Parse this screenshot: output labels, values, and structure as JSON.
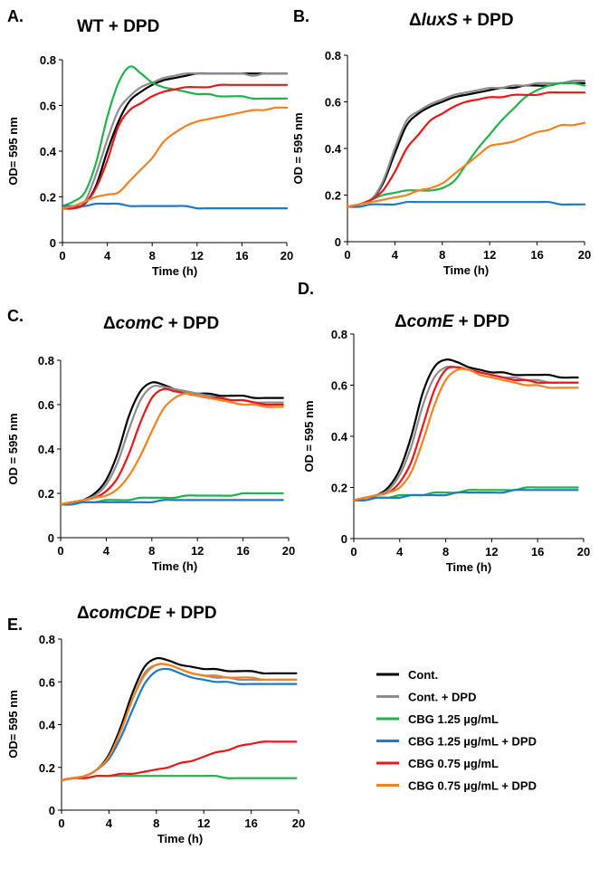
{
  "legend": [
    {
      "key": "cont",
      "label": "Cont.",
      "color": "#000000"
    },
    {
      "key": "cont_dpd",
      "label": "Cont. + DPD",
      "color": "#8c8c8c"
    },
    {
      "key": "cbg125",
      "label": "CBG 1.25 µg/mL",
      "color": "#22b14c"
    },
    {
      "key": "cbg125_dpd",
      "label": "CBG 1.25 µg/mL + DPD",
      "color": "#1f78c8"
    },
    {
      "key": "cbg075",
      "label": "CBG 0.75 µg/mL",
      "color": "#e8171b"
    },
    {
      "key": "cbg075_dpd",
      "label": "CBG 0.75 µg/mL + DPD",
      "color": "#f5821f"
    }
  ],
  "chart_data": [
    {
      "panel": "A.",
      "type": "line",
      "title": {
        "prefix": "",
        "italic": "",
        "suffix": "WT + DPD"
      },
      "xlabel": "Time (h)",
      "ylabel": "OD= 595 nm",
      "xlim": [
        0,
        20
      ],
      "ylim": [
        0,
        0.8
      ],
      "xticks": [
        "0",
        "4",
        "8",
        "12",
        "16",
        "20"
      ],
      "yticks": [
        "0",
        "0.2",
        "0.4",
        "0.6",
        "0.8"
      ],
      "x": [
        0,
        1,
        2,
        3,
        4,
        5,
        6,
        7,
        8,
        9,
        10,
        11,
        12,
        13,
        14,
        15,
        16,
        17,
        18,
        19,
        20
      ],
      "series": [
        {
          "key": "cont",
          "values": [
            0.15,
            0.15,
            0.17,
            0.25,
            0.4,
            0.53,
            0.62,
            0.66,
            0.69,
            0.71,
            0.72,
            0.73,
            0.74,
            0.74,
            0.74,
            0.74,
            0.74,
            0.74,
            0.74,
            0.74,
            0.74
          ]
        },
        {
          "key": "cont_dpd",
          "values": [
            0.15,
            0.15,
            0.18,
            0.3,
            0.45,
            0.58,
            0.64,
            0.68,
            0.7,
            0.72,
            0.73,
            0.74,
            0.74,
            0.74,
            0.74,
            0.74,
            0.74,
            0.73,
            0.74,
            0.74,
            0.74
          ]
        },
        {
          "key": "cbg125",
          "values": [
            0.16,
            0.18,
            0.22,
            0.35,
            0.55,
            0.7,
            0.77,
            0.74,
            0.7,
            0.68,
            0.67,
            0.66,
            0.65,
            0.65,
            0.64,
            0.64,
            0.64,
            0.63,
            0.63,
            0.63,
            0.63
          ]
        },
        {
          "key": "cbg125_dpd",
          "values": [
            0.16,
            0.16,
            0.16,
            0.17,
            0.17,
            0.17,
            0.16,
            0.16,
            0.16,
            0.16,
            0.16,
            0.16,
            0.15,
            0.15,
            0.15,
            0.15,
            0.15,
            0.15,
            0.15,
            0.15,
            0.15
          ]
        },
        {
          "key": "cbg075",
          "values": [
            0.15,
            0.15,
            0.17,
            0.24,
            0.36,
            0.51,
            0.58,
            0.61,
            0.64,
            0.66,
            0.67,
            0.68,
            0.68,
            0.68,
            0.69,
            0.69,
            0.69,
            0.69,
            0.69,
            0.69,
            0.69
          ]
        },
        {
          "key": "cbg075_dpd",
          "values": [
            0.15,
            0.16,
            0.18,
            0.2,
            0.21,
            0.22,
            0.27,
            0.32,
            0.37,
            0.44,
            0.48,
            0.51,
            0.53,
            0.54,
            0.55,
            0.56,
            0.57,
            0.58,
            0.58,
            0.59,
            0.59
          ]
        }
      ]
    },
    {
      "panel": "B.",
      "type": "line",
      "title": {
        "prefix": "Δ",
        "italic": "luxS",
        "suffix": " + DPD"
      },
      "xlabel": "Time (h)",
      "ylabel": "OD = 595 nm",
      "xlim": [
        0,
        20
      ],
      "ylim": [
        0,
        0.8
      ],
      "xticks": [
        "0",
        "4",
        "8",
        "12",
        "16",
        "20"
      ],
      "yticks": [
        "0",
        "0.2",
        "0.4",
        "0.6",
        "0.8"
      ],
      "x": [
        0,
        1,
        2,
        3,
        4,
        5,
        6,
        7,
        8,
        9,
        10,
        11,
        12,
        13,
        14,
        15,
        16,
        17,
        18,
        19,
        20
      ],
      "series": [
        {
          "key": "cont",
          "values": [
            0.15,
            0.16,
            0.18,
            0.25,
            0.38,
            0.5,
            0.55,
            0.58,
            0.6,
            0.62,
            0.63,
            0.64,
            0.65,
            0.66,
            0.66,
            0.67,
            0.67,
            0.67,
            0.68,
            0.68,
            0.68
          ]
        },
        {
          "key": "cont_dpd",
          "values": [
            0.15,
            0.16,
            0.18,
            0.26,
            0.4,
            0.52,
            0.56,
            0.59,
            0.61,
            0.63,
            0.64,
            0.65,
            0.66,
            0.66,
            0.67,
            0.67,
            0.68,
            0.68,
            0.68,
            0.69,
            0.69
          ]
        },
        {
          "key": "cbg125",
          "values": [
            0.15,
            0.16,
            0.18,
            0.2,
            0.21,
            0.22,
            0.22,
            0.22,
            0.23,
            0.26,
            0.33,
            0.4,
            0.46,
            0.52,
            0.57,
            0.62,
            0.65,
            0.67,
            0.68,
            0.68,
            0.67
          ]
        },
        {
          "key": "cbg125_dpd",
          "values": [
            0.15,
            0.15,
            0.16,
            0.16,
            0.16,
            0.17,
            0.17,
            0.17,
            0.17,
            0.17,
            0.17,
            0.17,
            0.17,
            0.17,
            0.17,
            0.17,
            0.17,
            0.17,
            0.16,
            0.16,
            0.16
          ]
        },
        {
          "key": "cbg075",
          "values": [
            0.15,
            0.16,
            0.18,
            0.22,
            0.3,
            0.4,
            0.46,
            0.52,
            0.55,
            0.58,
            0.6,
            0.61,
            0.62,
            0.62,
            0.63,
            0.63,
            0.63,
            0.64,
            0.64,
            0.64,
            0.64
          ]
        },
        {
          "key": "cbg075_dpd",
          "values": [
            0.15,
            0.16,
            0.17,
            0.18,
            0.19,
            0.2,
            0.22,
            0.23,
            0.25,
            0.29,
            0.33,
            0.37,
            0.41,
            0.42,
            0.43,
            0.45,
            0.47,
            0.48,
            0.5,
            0.5,
            0.51
          ]
        }
      ]
    },
    {
      "panel": "C.",
      "type": "line",
      "title": {
        "prefix": "Δ",
        "italic": "comC",
        "suffix": " + DPD"
      },
      "xlabel": "Time (h)",
      "ylabel": "OD = 595 nm",
      "xlim": [
        0,
        20
      ],
      "ylim": [
        0,
        0.8
      ],
      "xticks": [
        "0",
        "4",
        "8",
        "12",
        "16",
        "20"
      ],
      "yticks": [
        "0",
        "0.2",
        "0.4",
        "0.6",
        "0.8"
      ],
      "x": [
        0,
        1,
        2,
        3,
        4,
        5,
        6,
        7,
        8,
        9,
        10,
        11,
        12,
        13,
        14,
        15,
        16,
        17,
        18,
        19,
        19.5
      ],
      "series": [
        {
          "key": "cont",
          "values": [
            0.15,
            0.16,
            0.17,
            0.2,
            0.26,
            0.38,
            0.55,
            0.66,
            0.7,
            0.69,
            0.67,
            0.66,
            0.65,
            0.65,
            0.64,
            0.64,
            0.64,
            0.63,
            0.63,
            0.63,
            0.63
          ]
        },
        {
          "key": "cont_dpd",
          "values": [
            0.15,
            0.16,
            0.17,
            0.19,
            0.24,
            0.34,
            0.49,
            0.62,
            0.68,
            0.68,
            0.67,
            0.66,
            0.65,
            0.64,
            0.63,
            0.62,
            0.62,
            0.61,
            0.61,
            0.61,
            0.61
          ]
        },
        {
          "key": "cbg125",
          "values": [
            0.15,
            0.16,
            0.16,
            0.16,
            0.17,
            0.17,
            0.17,
            0.18,
            0.18,
            0.18,
            0.18,
            0.19,
            0.19,
            0.19,
            0.19,
            0.19,
            0.2,
            0.2,
            0.2,
            0.2,
            0.2
          ]
        },
        {
          "key": "cbg125_dpd",
          "values": [
            0.15,
            0.15,
            0.16,
            0.16,
            0.16,
            0.16,
            0.16,
            0.16,
            0.16,
            0.17,
            0.17,
            0.17,
            0.17,
            0.17,
            0.17,
            0.17,
            0.17,
            0.17,
            0.17,
            0.17,
            0.17
          ]
        },
        {
          "key": "cbg075",
          "values": [
            0.15,
            0.16,
            0.17,
            0.18,
            0.21,
            0.27,
            0.38,
            0.52,
            0.63,
            0.67,
            0.66,
            0.65,
            0.64,
            0.63,
            0.63,
            0.62,
            0.62,
            0.61,
            0.6,
            0.6,
            0.6
          ]
        },
        {
          "key": "cbg075_dpd",
          "values": [
            0.15,
            0.16,
            0.17,
            0.18,
            0.19,
            0.22,
            0.28,
            0.37,
            0.48,
            0.58,
            0.63,
            0.65,
            0.64,
            0.63,
            0.62,
            0.61,
            0.6,
            0.6,
            0.59,
            0.59,
            0.59
          ]
        }
      ]
    },
    {
      "panel": "D.",
      "type": "line",
      "title": {
        "prefix": "Δ",
        "italic": "comE",
        "suffix": " + DPD"
      },
      "xlabel": "Time (h)",
      "ylabel": "OD = 595 nm",
      "xlim": [
        0,
        20
      ],
      "ylim": [
        0,
        0.8
      ],
      "xticks": [
        "0",
        "4",
        "8",
        "12",
        "16",
        "20"
      ],
      "yticks": [
        "0",
        "0.2",
        "0.4",
        "0.6",
        "0.8"
      ],
      "x": [
        0,
        1,
        2,
        3,
        4,
        5,
        6,
        7,
        8,
        9,
        10,
        11,
        12,
        13,
        14,
        15,
        16,
        17,
        18,
        19,
        19.5
      ],
      "series": [
        {
          "key": "cont",
          "values": [
            0.15,
            0.16,
            0.17,
            0.2,
            0.27,
            0.4,
            0.57,
            0.67,
            0.7,
            0.69,
            0.67,
            0.66,
            0.65,
            0.65,
            0.64,
            0.64,
            0.64,
            0.64,
            0.63,
            0.63,
            0.63
          ]
        },
        {
          "key": "cont_dpd",
          "values": [
            0.15,
            0.16,
            0.17,
            0.19,
            0.25,
            0.36,
            0.52,
            0.63,
            0.67,
            0.67,
            0.66,
            0.65,
            0.64,
            0.63,
            0.63,
            0.62,
            0.62,
            0.61,
            0.61,
            0.61,
            0.61
          ]
        },
        {
          "key": "cbg125",
          "values": [
            0.15,
            0.15,
            0.16,
            0.16,
            0.17,
            0.17,
            0.17,
            0.18,
            0.18,
            0.18,
            0.19,
            0.19,
            0.19,
            0.19,
            0.19,
            0.2,
            0.2,
            0.2,
            0.2,
            0.2,
            0.2
          ]
        },
        {
          "key": "cbg125_dpd",
          "values": [
            0.15,
            0.15,
            0.16,
            0.16,
            0.16,
            0.17,
            0.17,
            0.17,
            0.17,
            0.18,
            0.18,
            0.18,
            0.18,
            0.18,
            0.19,
            0.19,
            0.19,
            0.19,
            0.19,
            0.19,
            0.19
          ]
        },
        {
          "key": "cbg075",
          "values": [
            0.15,
            0.16,
            0.17,
            0.18,
            0.22,
            0.3,
            0.44,
            0.58,
            0.66,
            0.67,
            0.66,
            0.65,
            0.64,
            0.63,
            0.62,
            0.62,
            0.61,
            0.61,
            0.61,
            0.61,
            0.61
          ]
        },
        {
          "key": "cbg075_dpd",
          "values": [
            0.15,
            0.16,
            0.17,
            0.18,
            0.2,
            0.26,
            0.38,
            0.52,
            0.62,
            0.66,
            0.66,
            0.64,
            0.63,
            0.62,
            0.61,
            0.6,
            0.6,
            0.59,
            0.59,
            0.59,
            0.59
          ]
        }
      ]
    },
    {
      "panel": "E.",
      "type": "line",
      "title": {
        "prefix": "Δ",
        "italic": "comCDE",
        "suffix": " + DPD"
      },
      "xlabel": "Time (h)",
      "ylabel": "OD= 595 nm",
      "xlim": [
        0,
        20
      ],
      "ylim": [
        0,
        0.8
      ],
      "xticks": [
        "0",
        "4",
        "8",
        "12",
        "16",
        "20"
      ],
      "yticks": [
        "0",
        "0.2",
        "0.4",
        "0.6",
        "0.8"
      ],
      "x": [
        0,
        1,
        2,
        3,
        4,
        5,
        6,
        7,
        8,
        9,
        10,
        11,
        12,
        13,
        14,
        15,
        16,
        17,
        18,
        19,
        19.8
      ],
      "series": [
        {
          "key": "cont",
          "values": [
            0.14,
            0.15,
            0.16,
            0.19,
            0.26,
            0.39,
            0.55,
            0.67,
            0.71,
            0.7,
            0.68,
            0.67,
            0.66,
            0.66,
            0.65,
            0.65,
            0.65,
            0.64,
            0.64,
            0.64,
            0.64
          ]
        },
        {
          "key": "cont_dpd",
          "values": [
            0.14,
            0.15,
            0.16,
            0.19,
            0.25,
            0.37,
            0.52,
            0.64,
            0.68,
            0.68,
            0.66,
            0.64,
            0.63,
            0.62,
            0.62,
            0.61,
            0.61,
            0.61,
            0.61,
            0.61,
            0.61
          ]
        },
        {
          "key": "cbg125",
          "values": [
            0.14,
            0.15,
            0.15,
            0.16,
            0.16,
            0.16,
            0.16,
            0.16,
            0.16,
            0.16,
            0.16,
            0.16,
            0.16,
            0.16,
            0.15,
            0.15,
            0.15,
            0.15,
            0.15,
            0.15,
            0.15
          ]
        },
        {
          "key": "cbg125_dpd",
          "values": [
            0.14,
            0.15,
            0.16,
            0.19,
            0.24,
            0.34,
            0.47,
            0.59,
            0.65,
            0.66,
            0.64,
            0.62,
            0.61,
            0.6,
            0.6,
            0.59,
            0.59,
            0.59,
            0.59,
            0.59,
            0.59
          ]
        },
        {
          "key": "cbg075",
          "values": [
            0.14,
            0.15,
            0.15,
            0.16,
            0.16,
            0.17,
            0.17,
            0.18,
            0.19,
            0.2,
            0.22,
            0.23,
            0.25,
            0.27,
            0.28,
            0.3,
            0.31,
            0.32,
            0.32,
            0.32,
            0.32
          ]
        },
        {
          "key": "cbg075_dpd",
          "values": [
            0.14,
            0.15,
            0.16,
            0.19,
            0.25,
            0.37,
            0.52,
            0.63,
            0.68,
            0.68,
            0.66,
            0.64,
            0.63,
            0.63,
            0.62,
            0.62,
            0.62,
            0.61,
            0.61,
            0.61,
            0.61
          ]
        }
      ]
    }
  ]
}
